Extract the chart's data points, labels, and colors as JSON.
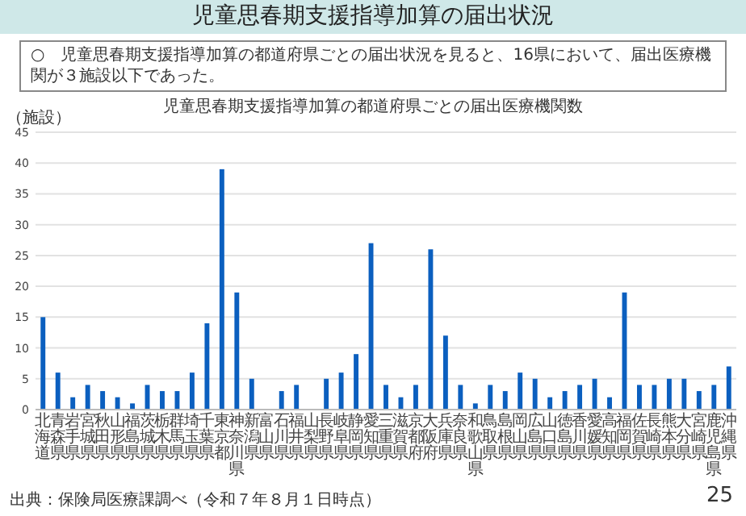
{
  "chart_data": {
    "type": "bar",
    "title": "児童思春期支援指導加算の都道府県ごとの届出医療機関数",
    "ylabel": "（施設）",
    "categories": [
      "北海道",
      "青森県",
      "岩手県",
      "宮城県",
      "秋田県",
      "山形県",
      "福島県",
      "茨城県",
      "栃木県",
      "群馬県",
      "埼玉県",
      "千葉県",
      "東京都",
      "神奈川県",
      "新潟県",
      "富山県",
      "石川県",
      "福井県",
      "山梨県",
      "長野県",
      "岐阜県",
      "静岡県",
      "愛知県",
      "三重県",
      "滋賀県",
      "京都府",
      "大阪府",
      "兵庫県",
      "奈良県",
      "和歌山県",
      "鳥取県",
      "島根県",
      "岡山県",
      "広島県",
      "山口県",
      "徳島県",
      "香川県",
      "愛媛県",
      "高知県",
      "福岡県",
      "佐賀県",
      "長崎県",
      "熊本県",
      "大分県",
      "宮崎県",
      "鹿児島県",
      "沖縄県"
    ],
    "values": [
      15,
      6,
      2,
      4,
      3,
      2,
      1,
      4,
      3,
      3,
      6,
      14,
      39,
      19,
      5,
      0,
      3,
      4,
      0,
      5,
      6,
      9,
      27,
      4,
      2,
      4,
      26,
      12,
      4,
      1,
      4,
      3,
      6,
      5,
      2,
      3,
      4,
      5,
      2,
      19,
      4,
      4,
      5,
      5,
      3,
      4,
      7
    ],
    "color": "#0b5fbf",
    "ylim": [
      0,
      45
    ],
    "yticks": [
      0,
      5,
      10,
      15,
      20,
      25,
      30,
      35,
      40,
      45
    ],
    "grid": "y",
    "annotations": [
      "児童思春期支援指導加算の届出状況",
      "○　児童思春期支援指導加算の都道府県ごとの届出状況を見ると、16県において、届出医療機関が３施設以下であった。",
      "出典：保険局医療課調べ（令和７年８月１日時点）",
      "25"
    ]
  }
}
